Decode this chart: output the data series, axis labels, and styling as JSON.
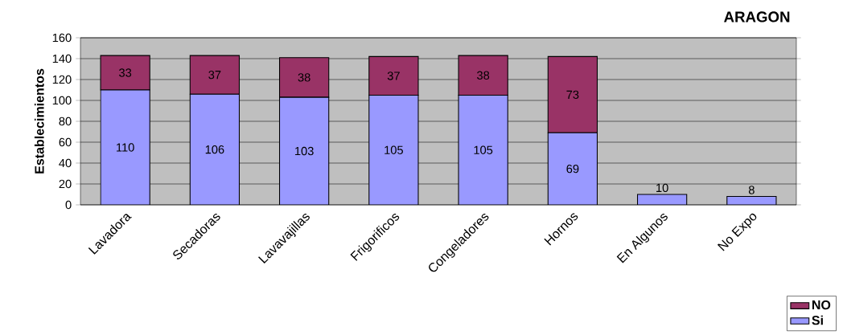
{
  "chart_data": {
    "type": "bar",
    "title": "ARAGON",
    "ylabel": "Establecimientos",
    "categories": [
      "Lavadora",
      "Secadoras",
      "Lavavajillas",
      "Frigorificos",
      "Congeladores",
      "Hornos",
      "En Algunos",
      "No Expo"
    ],
    "stacked": true,
    "series": [
      {
        "name": "Si",
        "color": "#9999ff",
        "values": [
          110,
          106,
          103,
          105,
          105,
          69,
          10,
          8
        ],
        "value_labels": [
          "110",
          "106",
          "103",
          "105",
          "105",
          "69",
          "10",
          "8"
        ]
      },
      {
        "name": "NO",
        "color": "#993366",
        "values": [
          33,
          37,
          38,
          37,
          38,
          73,
          null,
          null
        ],
        "value_labels": [
          "33",
          "37",
          "38",
          "37",
          "38",
          "73",
          null,
          null
        ]
      }
    ],
    "ylim": [
      0,
      160
    ],
    "yticks": [
      0,
      20,
      40,
      60,
      80,
      100,
      120,
      140,
      160
    ],
    "grid": "y",
    "legend": "bottom right"
  }
}
